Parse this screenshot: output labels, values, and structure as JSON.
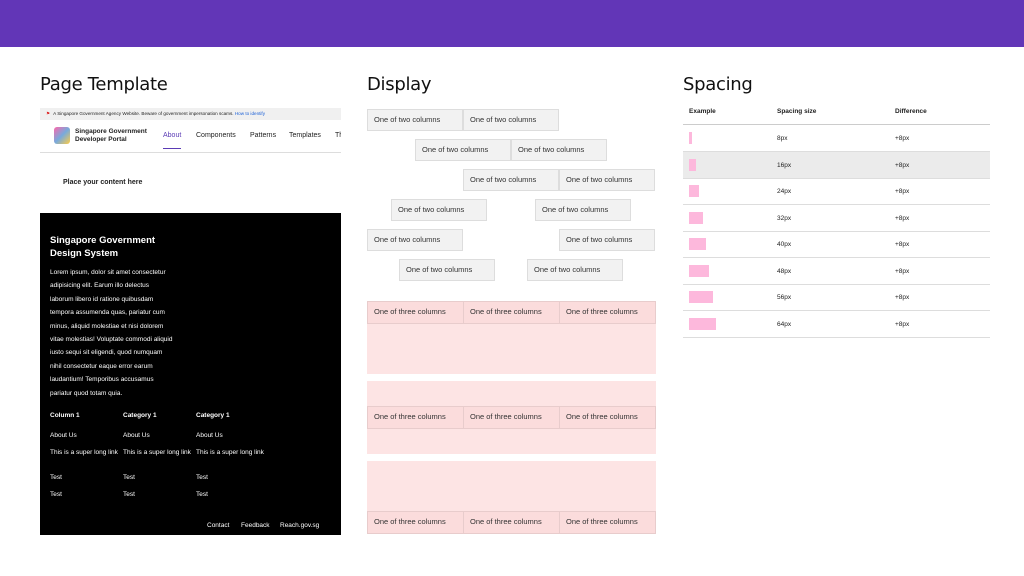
{
  "page_template": {
    "title": "Page Template",
    "masthead": {
      "text": "A Singapore Government Agency Website. Beware of government impersonation scams.",
      "link": "How to identify"
    },
    "nav": {
      "logo_line1": "Singapore Government",
      "logo_line2": "Developer Portal",
      "links": [
        "About",
        "Components",
        "Patterns",
        "Templates",
        "Th"
      ]
    },
    "content": "Place your content here",
    "footer": {
      "title_line1": "Singapore Government",
      "title_line2": "Design System",
      "paragraph": [
        "Lorem ipsum, dolor sit amet consectetur",
        "adipisicing elit. Earum illo delectus",
        "laborum libero id ratione quibusdam",
        "tempora assumenda quas, pariatur cum",
        "minus, aliquid molestiae et nisi dolorem",
        "vitae molestias! Voluptate commodi aliquid",
        "iusto sequi sit eligendi, quod numquam",
        "nihil consectetur eaque error earum",
        "laudantium! Temporibus accusamus",
        "pariatur quod totam quia."
      ],
      "columns": [
        {
          "heading": "Column 1",
          "links": [
            "About Us",
            "This is a super long link",
            "Test",
            "Test"
          ]
        },
        {
          "heading": "Category 1",
          "links": [
            "About Us",
            "This is a super long link",
            "Test",
            "Test"
          ]
        },
        {
          "heading": "Category 1",
          "links": [
            "About Us",
            "This is a super long link",
            "Test",
            "Test"
          ]
        }
      ],
      "bottom_links": [
        "Contact",
        "Feedback",
        "Reach.gov.sg"
      ]
    }
  },
  "display": {
    "title": "Display",
    "two_column_rows": [
      [
        "One of two columns",
        "One of two columns"
      ],
      [
        "One of two columns",
        "One of two columns"
      ],
      [
        "One of two columns",
        "One of two columns"
      ],
      [
        "One of two columns",
        "One of two columns"
      ],
      [
        "One of two columns",
        "One of two columns"
      ],
      [
        "One of two columns",
        "One of two columns"
      ]
    ],
    "three_column_rows": [
      [
        "One of three columns",
        "One of three columns",
        "One of three columns"
      ],
      [
        "One of three columns",
        "One of three columns",
        "One of three columns"
      ],
      [
        "One of three columns",
        "One of three columns",
        "One of three columns"
      ]
    ]
  },
  "spacing": {
    "title": "Spacing",
    "header": [
      "Example",
      "Spacing size",
      "Difference"
    ],
    "rows": [
      [
        "8px",
        "+8px"
      ],
      [
        "16px",
        "+8px"
      ],
      [
        "24px",
        "+8px"
      ],
      [
        "32px",
        "+8px"
      ],
      [
        "40px",
        "+8px"
      ],
      [
        "48px",
        "+8px"
      ],
      [
        "56px",
        "+8px"
      ],
      [
        "64px",
        "+8px"
      ]
    ]
  }
}
